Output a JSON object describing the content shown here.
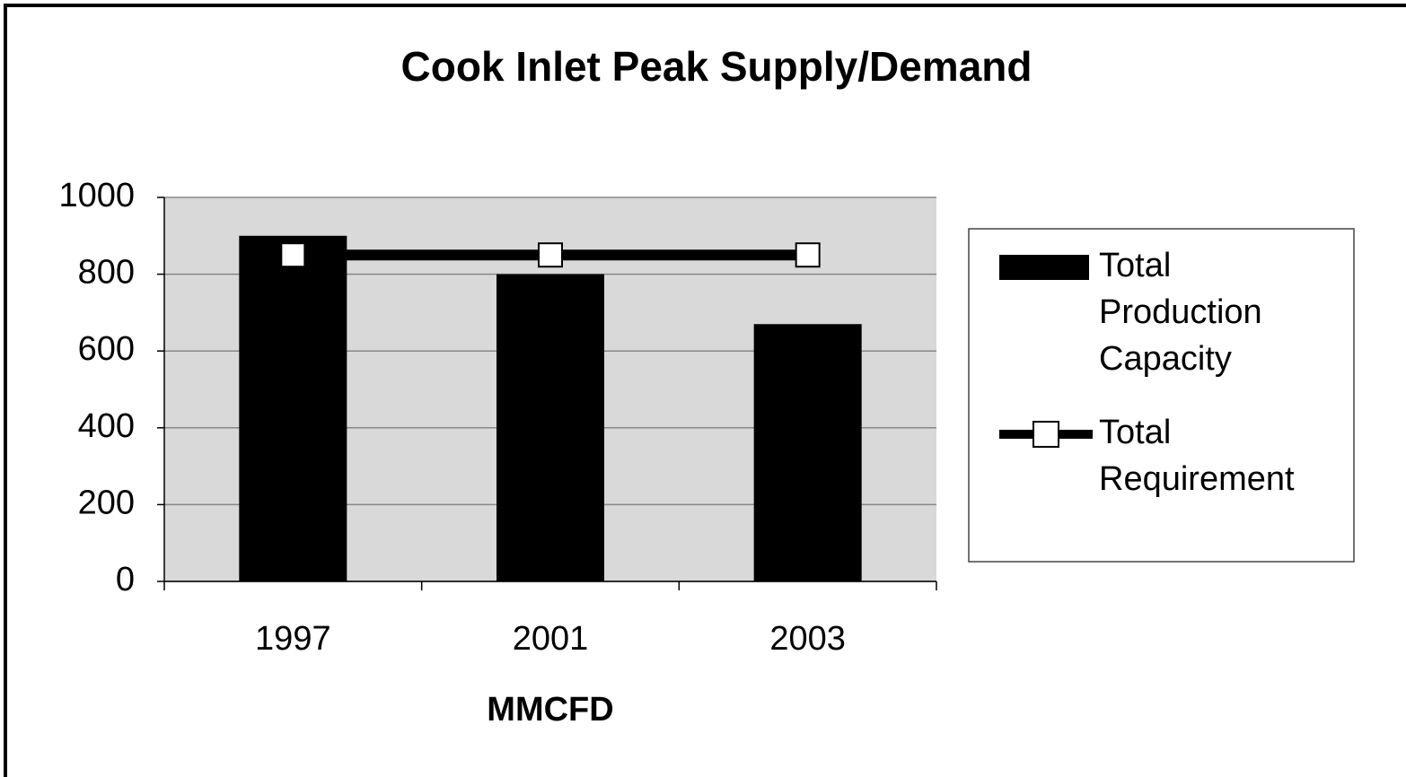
{
  "chart_data": {
    "type": "bar",
    "title": "Cook Inlet Peak Supply/Demand",
    "x_label": "MMCFD",
    "categories": [
      "1997",
      "2001",
      "2003"
    ],
    "series": [
      {
        "name": "Total Production Capacity",
        "type": "bar",
        "color": "#000000",
        "values": [
          900,
          800,
          670
        ]
      },
      {
        "name": "Total Requirement",
        "type": "line",
        "color": "#000000",
        "values": [
          850,
          850,
          850
        ]
      }
    ],
    "ylim": [
      0,
      1000
    ],
    "yticks": [
      0,
      200,
      400,
      600,
      800,
      1000
    ],
    "grid": true,
    "legend": "right"
  }
}
